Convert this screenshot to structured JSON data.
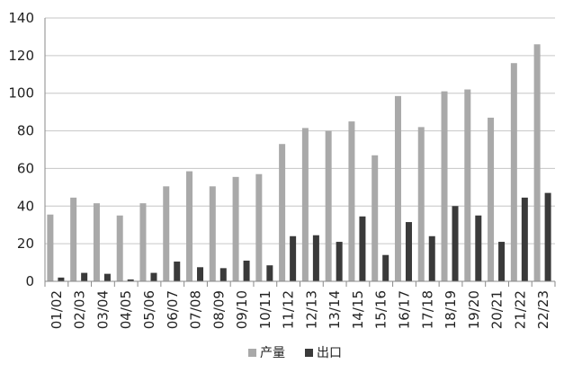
{
  "chart_data": {
    "type": "bar",
    "title": "",
    "xlabel": "",
    "ylabel": "",
    "ylim": [
      0,
      140
    ],
    "yticks": [
      0,
      20,
      40,
      60,
      80,
      100,
      120,
      140
    ],
    "grid": true,
    "legend_position": "bottom",
    "categories": [
      "01/02",
      "02/03",
      "03/04",
      "04/05",
      "05/06",
      "06/07",
      "07/08",
      "08/09",
      "09/10",
      "10/11",
      "11/12",
      "12/13",
      "13/14",
      "14/15",
      "15/16",
      "16/17",
      "17/18",
      "18/19",
      "19/20",
      "20/21",
      "21/22",
      "22/23"
    ],
    "series": [
      {
        "name": "产量",
        "color": "#a9a9a9",
        "values": [
          35.5,
          44.5,
          41.5,
          35,
          41.5,
          50.5,
          58.5,
          50.5,
          55.5,
          57,
          73,
          81.5,
          80,
          85,
          67,
          98.5,
          82,
          101,
          102,
          87,
          116,
          126
        ]
      },
      {
        "name": "出口",
        "color": "#3a3a3a",
        "values": [
          2,
          4.5,
          4,
          1,
          4.5,
          10.5,
          7.5,
          7,
          11,
          8.5,
          24,
          24.5,
          21,
          34.5,
          14,
          31.5,
          24,
          40,
          35,
          21,
          44.5,
          47
        ]
      }
    ]
  }
}
